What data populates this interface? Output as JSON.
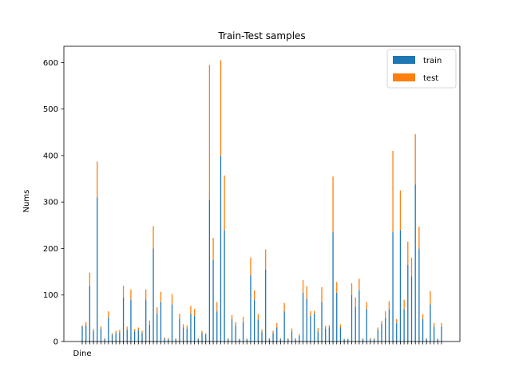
{
  "chart_data": {
    "type": "bar",
    "stacked": true,
    "title": "Train-Test samples",
    "xlabel": "",
    "ylabel": "Nums",
    "ylim": [
      0,
      635
    ],
    "yticks": [
      0,
      100,
      200,
      300,
      400,
      500,
      600
    ],
    "legend": {
      "placement": "top-right",
      "entries": [
        "train",
        "test"
      ]
    },
    "colors": {
      "train": "#1f77b4",
      "test": "#ff7f0e"
    },
    "first_category_label": "Dine",
    "series": [
      {
        "name": "train",
        "values": [
          32,
          35,
          120,
          22,
          310,
          28,
          5,
          52,
          15,
          18,
          20,
          95,
          25,
          90,
          22,
          24,
          18,
          90,
          36,
          200,
          60,
          85,
          6,
          5,
          80,
          5,
          48,
          30,
          28,
          60,
          55,
          5,
          18,
          15,
          305,
          175,
          65,
          400,
          240,
          5,
          48,
          35,
          5,
          42,
          5,
          143,
          90,
          47,
          20,
          155,
          5,
          18,
          30,
          5,
          65,
          5,
          22,
          5,
          12,
          105,
          92,
          55,
          60,
          22,
          85,
          28,
          30,
          235,
          105,
          30,
          5,
          5,
          100,
          75,
          110,
          5,
          70,
          5,
          5,
          25,
          38,
          50,
          70,
          235,
          40,
          240,
          70,
          165,
          140,
          338,
          200,
          48,
          5,
          80,
          32,
          5,
          32
        ]
      },
      {
        "name": "test",
        "values": [
          3,
          7,
          28,
          5,
          77,
          5,
          2,
          13,
          3,
          5,
          5,
          25,
          7,
          22,
          5,
          6,
          5,
          22,
          9,
          48,
          14,
          22,
          3,
          2,
          22,
          2,
          12,
          7,
          7,
          17,
          15,
          2,
          5,
          3,
          290,
          48,
          20,
          205,
          117,
          2,
          9,
          7,
          1,
          11,
          1,
          38,
          20,
          12,
          6,
          43,
          2,
          5,
          10,
          2,
          18,
          2,
          6,
          2,
          4,
          27,
          27,
          10,
          6,
          7,
          32,
          6,
          5,
          120,
          23,
          7,
          1,
          1,
          25,
          20,
          25,
          2,
          15,
          2,
          2,
          5,
          6,
          15,
          17,
          175,
          8,
          85,
          20,
          50,
          40,
          108,
          47,
          11,
          2,
          28,
          8,
          1,
          8
        ]
      }
    ]
  }
}
